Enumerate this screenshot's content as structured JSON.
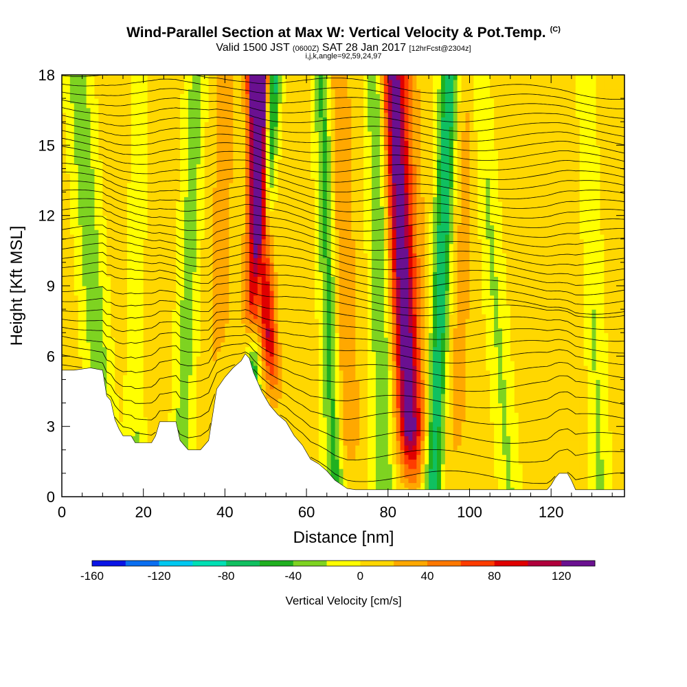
{
  "header": {
    "title": "Wind-Parallel Section at Max W: Vertical Velocity & Pot.Temp.",
    "copyright_mark": "(C)",
    "subtitle_pre": "Valid 1500 JST",
    "subtitle_utc": "(0600Z)",
    "subtitle_date": "SAT 28 Jan 2017",
    "subtitle_fcst": "[12hrFcst@2304z]",
    "params": "i,j,k,angle=92,59,24,97"
  },
  "chart_data": {
    "type": "heatmap",
    "title": "Wind-Parallel Section at Max W: Vertical Velocity & Pot.Temp.",
    "xlabel": "Distance [nm]",
    "ylabel": "Height [Kft MSL]",
    "xlim": [
      0,
      138
    ],
    "ylim": [
      0,
      18
    ],
    "x_ticks": [
      0,
      20,
      40,
      60,
      80,
      100,
      120
    ],
    "y_ticks": [
      0,
      3,
      6,
      9,
      12,
      15,
      18
    ],
    "terrain": {
      "description": "terrain height (Kft) vs distance (nm)",
      "x": [
        0,
        3,
        7,
        10,
        11,
        12,
        13,
        14,
        15,
        17,
        18,
        22,
        23,
        24,
        25,
        28,
        29,
        30,
        31,
        34,
        35,
        36,
        38,
        40,
        42,
        44,
        45,
        46,
        47,
        48,
        49,
        50,
        51,
        53,
        55,
        57,
        59,
        61,
        63,
        65,
        67,
        70,
        72,
        74,
        76,
        80,
        84,
        88,
        92,
        96,
        100,
        104,
        108,
        112,
        116,
        119,
        120,
        121,
        122,
        123,
        124,
        125,
        126,
        130,
        134,
        138
      ],
      "y": [
        5.4,
        5.4,
        5.5,
        5.4,
        4.3,
        4.1,
        3.3,
        2.9,
        2.6,
        2.6,
        2.3,
        2.3,
        2.6,
        3.2,
        3.2,
        3.2,
        2.4,
        2.2,
        2.0,
        2.0,
        2.2,
        2.4,
        4.6,
        5.1,
        5.5,
        5.8,
        6.1,
        5.9,
        5.3,
        4.9,
        4.5,
        4.2,
        3.9,
        3.5,
        3.2,
        2.6,
        2.2,
        1.6,
        1.4,
        1.1,
        0.7,
        0.35,
        0.3,
        0.3,
        0.3,
        0.3,
        0.3,
        0.3,
        0.3,
        0.3,
        0.3,
        0.3,
        0.3,
        0.3,
        0.3,
        0.3,
        0.5,
        0.8,
        1.0,
        1.0,
        1.0,
        0.7,
        0.3,
        0.3,
        0.3,
        0.3
      ]
    },
    "updraft_bands": [
      {
        "x_bottom": 46,
        "x_top": 49,
        "w_max": 130,
        "width": 2.2
      },
      {
        "x_bottom": 53,
        "x_top": 47,
        "w_max": 90,
        "width": 2.0
      },
      {
        "x_bottom": 86,
        "x_top": 81,
        "w_max": 95,
        "width": 2.6
      },
      {
        "x_bottom": 87,
        "x_top": 83,
        "w_max": 45,
        "width": 4.0
      },
      {
        "x_bottom": 70,
        "x_top": 67,
        "w_max": 35,
        "width": 3.5
      },
      {
        "x_bottom": 96,
        "x_top": 100,
        "w_max": 20,
        "width": 3.0
      },
      {
        "x_bottom": 38,
        "x_top": 40,
        "w_max": 22,
        "width": 3.0
      },
      {
        "x_bottom": 20,
        "x_top": 22,
        "w_max": 18,
        "width": 3.0
      },
      {
        "x_bottom": 125,
        "x_top": 125,
        "w_max": 12,
        "width": 5.0
      }
    ],
    "downdraft_bands": [
      {
        "x_bottom": 45,
        "x_top": 52,
        "w_min": -90,
        "width": 1.8
      },
      {
        "x_bottom": 67,
        "x_top": 64,
        "w_min": -65,
        "width": 2.2
      },
      {
        "x_bottom": 91,
        "x_top": 95,
        "w_min": -85,
        "width": 2.2
      },
      {
        "x_bottom": 79,
        "x_top": 77,
        "w_min": -45,
        "width": 2.5
      },
      {
        "x_bottom": 29,
        "x_top": 33,
        "w_min": -35,
        "width": 2.5
      },
      {
        "x_bottom": 11,
        "x_top": 4,
        "w_min": -40,
        "width": 3.0
      },
      {
        "x_bottom": 18,
        "x_top": 20,
        "w_min": -30,
        "width": 2.5
      },
      {
        "x_bottom": 110,
        "x_top": 102,
        "w_min": -28,
        "width": 2.5
      },
      {
        "x_bottom": 132,
        "x_top": 128,
        "w_min": -30,
        "width": 2.5
      }
    ],
    "potential_temperature": {
      "base_level_kft": [
        0.9,
        1.8,
        2.6,
        3.4,
        4.1,
        4.8,
        5.4,
        6.0,
        6.5,
        7.0,
        7.5,
        8.0,
        8.4,
        8.8,
        9.2,
        9.6,
        10.0,
        10.4,
        10.8,
        11.2,
        11.6,
        12.0,
        12.4,
        12.8,
        13.2,
        13.6,
        14.0,
        14.4,
        14.8,
        15.2,
        15.6,
        16.0,
        16.4,
        16.8,
        17.2,
        17.6
      ]
    },
    "colorbar": {
      "label": "Vertical Velocity [cm/s]",
      "ticks": [
        -160,
        -120,
        -80,
        -40,
        0,
        40,
        80,
        120
      ],
      "tick_labels": [
        "-160",
        "-120",
        "-80",
        "-40",
        "0",
        "40",
        "80",
        "120"
      ],
      "range": [
        -160,
        140
      ],
      "step": 20,
      "colors": [
        "#0a14e6",
        "#0a6ef0",
        "#00c8f0",
        "#00e0b4",
        "#10c060",
        "#20b020",
        "#7ed321",
        "#ffff00",
        "#ffd700",
        "#ffa800",
        "#ff7800",
        "#ff3c00",
        "#e00000",
        "#b0003c",
        "#6a1090"
      ]
    }
  }
}
